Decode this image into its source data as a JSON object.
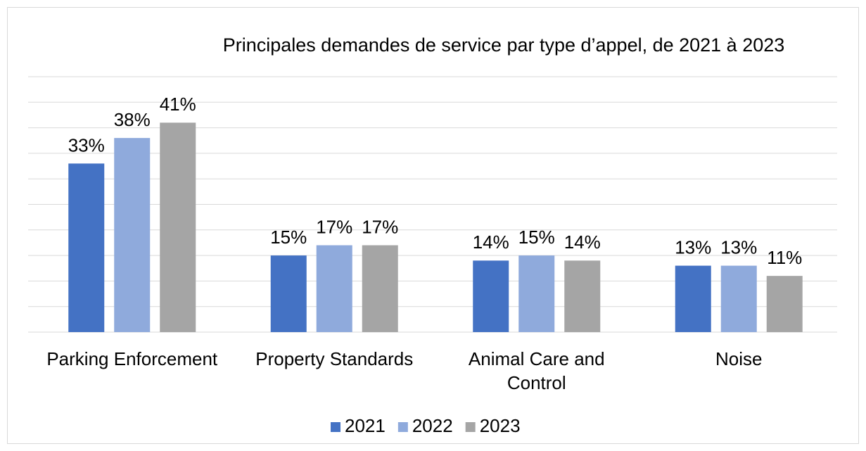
{
  "chart_data": {
    "type": "bar",
    "title": "Principales demandes de service par type d’appel, de 2021 à 2023",
    "categories": [
      "Parking Enforcement",
      "Property Standards",
      "Animal Care and Control",
      "Noise"
    ],
    "series": [
      {
        "name": "2021",
        "color": "#4472c4",
        "values": [
          33,
          15,
          14,
          13
        ],
        "value_labels": [
          "33%",
          "15%",
          "14%",
          "13%"
        ]
      },
      {
        "name": "2022",
        "color": "#8faadc",
        "values": [
          38,
          17,
          15,
          13
        ],
        "value_labels": [
          "38%",
          "17%",
          "15%",
          "13%"
        ]
      },
      {
        "name": "2023",
        "color": "#a5a5a5",
        "values": [
          41,
          17,
          14,
          11
        ],
        "value_labels": [
          "41%",
          "17%",
          "14%",
          "11%"
        ]
      }
    ],
    "ylim": [
      0,
      50
    ],
    "yticks": [
      0,
      5,
      10,
      15,
      20,
      25,
      30,
      35,
      40,
      45,
      50
    ],
    "grid": true,
    "legend": "bottom"
  }
}
